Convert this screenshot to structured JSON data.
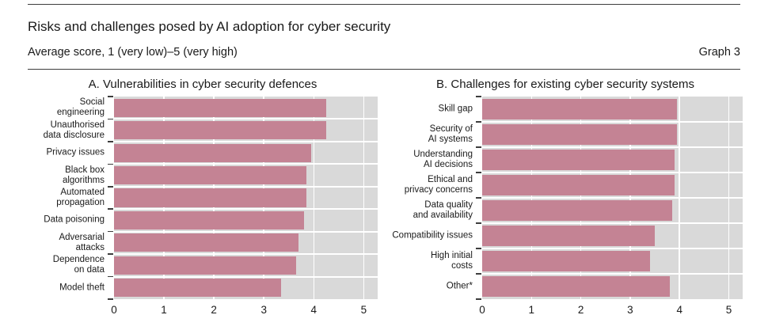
{
  "header": {
    "title": "Risks and challenges posed by AI adoption for cyber security",
    "subtitle": "Average score, 1 (very low)–5 (very high)",
    "graph_label": "Graph 3"
  },
  "colors": {
    "bar": "#c48394",
    "plot_background": "#d9d9d9",
    "gridline": "#ffffff",
    "text": "#1a1a1a"
  },
  "chart_data": [
    {
      "type": "bar",
      "orientation": "horizontal",
      "panel": "A",
      "title": "A. Vulnerabilities in cyber security defences",
      "categories": [
        "Social engineering",
        "Unauthorised data disclosure",
        "Privacy issues",
        "Black box algorithms",
        "Automated propagation",
        "Data poisoning",
        "Adversarial attacks",
        "Dependence on data",
        "Model theft"
      ],
      "labels_wrapped": [
        "Social\nengineering",
        "Unauthorised\ndata disclosure",
        "Privacy issues",
        "Black box\nalgorithms",
        "Automated\npropagation",
        "Data poisoning",
        "Adversarial attacks",
        "Dependence\non data",
        "Model theft"
      ],
      "values": [
        4.25,
        4.25,
        3.95,
        3.85,
        3.85,
        3.8,
        3.7,
        3.65,
        3.35
      ],
      "xlim": [
        0,
        5.28
      ],
      "xticks": [
        0,
        1,
        2,
        3,
        4,
        5
      ],
      "xlabel": "",
      "ylabel": "",
      "grid": "vertical white lines at integers",
      "legend": "none",
      "bar_color": "#c48394"
    },
    {
      "type": "bar",
      "orientation": "horizontal",
      "panel": "B",
      "title": "B. Challenges for existing cyber security systems",
      "categories": [
        "Skill gap",
        "Security of AI systems",
        "Understanding AI decisions",
        "Ethical and privacy concerns",
        "Data quality and availability",
        "Compatibility issues",
        "High initial costs",
        "Other*"
      ],
      "labels_wrapped": [
        "Skill gap",
        "Security of\nAI systems",
        "Understanding\nAI decisions",
        "Ethical and\nprivacy concerns",
        "Data quality\nand availability",
        "Compatibility issues",
        "High initial\ncosts",
        "Other*"
      ],
      "values": [
        3.95,
        3.95,
        3.9,
        3.9,
        3.85,
        3.5,
        3.4,
        3.8
      ],
      "xlim": [
        0,
        5.28
      ],
      "xticks": [
        0,
        1,
        2,
        3,
        4,
        5
      ],
      "xlabel": "",
      "ylabel": "",
      "grid": "vertical white lines at integers",
      "legend": "none",
      "bar_color": "#c48394"
    }
  ]
}
